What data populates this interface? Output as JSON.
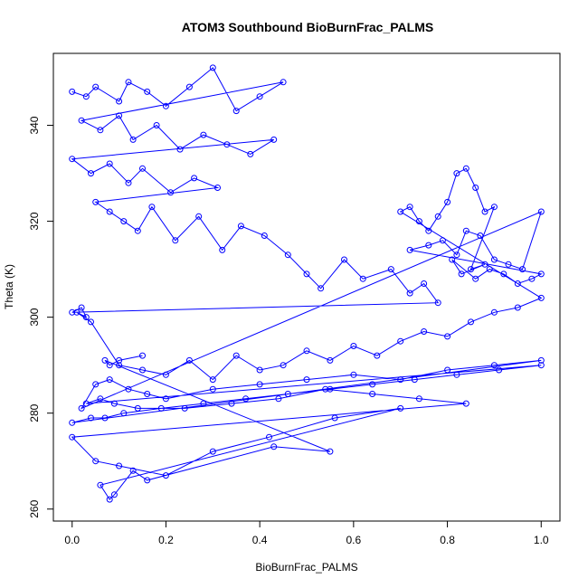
{
  "chart_data": {
    "type": "line",
    "title": "ATOM3 Southbound BioBurnFrac_PALMS",
    "xlabel": "BioBurnFrac_PALMS",
    "ylabel": "Theta (K)",
    "xlim": [
      -0.04,
      1.04
    ],
    "ylim": [
      257.5,
      355.0
    ],
    "x_ticks": [
      0.0,
      0.2,
      0.4,
      0.6,
      0.8,
      1.0
    ],
    "x_tick_labels": [
      "0.0",
      "0.2",
      "0.4",
      "0.6",
      "0.8",
      "1.0"
    ],
    "y_ticks": [
      260,
      280,
      300,
      320,
      340
    ],
    "y_tick_labels": [
      "260",
      "280",
      "300",
      "320",
      "340"
    ],
    "grid": false,
    "legend": "none",
    "color": "#0000ff",
    "marker": "open-circle",
    "series": [
      {
        "x": [
          0.0,
          0.03,
          0.05,
          0.1,
          0.12,
          0.16,
          0.2,
          0.25,
          0.3,
          0.35,
          0.4,
          0.45,
          0.02,
          0.06,
          0.1,
          0.13,
          0.18,
          0.23,
          0.28,
          0.33,
          0.38,
          0.43,
          0.0,
          0.04,
          0.08,
          0.12,
          0.15,
          0.21,
          0.26,
          0.31,
          0.05,
          0.08,
          0.11,
          0.14,
          0.17,
          0.22,
          0.27,
          0.32,
          0.36,
          0.41,
          0.46,
          0.5,
          0.53,
          0.58,
          0.62,
          0.68,
          0.72,
          0.75,
          0.78,
          0.0,
          0.02,
          0.03,
          0.01,
          0.04,
          0.1,
          0.15,
          0.2,
          0.25,
          0.3,
          0.35,
          0.4,
          0.45,
          0.5,
          0.55,
          0.6,
          0.65,
          0.7,
          0.75,
          0.8,
          0.85,
          0.9,
          0.95,
          1.0,
          0.7,
          0.72,
          0.74,
          0.76,
          0.78,
          0.8,
          0.82,
          0.84,
          0.86,
          0.88,
          0.9,
          0.85,
          0.88,
          0.83,
          0.81,
          0.86,
          0.89,
          0.92,
          0.95,
          0.98,
          1.0,
          0.72,
          0.76,
          0.79,
          0.82,
          0.84,
          0.87,
          0.9,
          0.93,
          0.96,
          1.0,
          0.02,
          0.05,
          0.08,
          0.12,
          0.16,
          0.2,
          0.3,
          0.4,
          0.5,
          0.6,
          0.7,
          0.8,
          0.9,
          1.0,
          0.0,
          0.04,
          0.07,
          0.11,
          0.19,
          0.28,
          0.37,
          0.46,
          0.55,
          0.64,
          0.73,
          0.82,
          0.91,
          1.0,
          0.03,
          0.06,
          0.09,
          0.14,
          0.24,
          0.34,
          0.44,
          0.54,
          0.64,
          0.74,
          0.84,
          0.0,
          0.05,
          0.1,
          0.2,
          0.3,
          0.42,
          0.56,
          0.7,
          0.06,
          0.08,
          0.09,
          0.13,
          0.16,
          0.43,
          0.55,
          0.07,
          0.08,
          0.1,
          0.15
        ],
        "y": [
          347,
          346,
          348,
          345,
          349,
          347,
          344,
          348,
          352,
          343,
          346,
          349,
          341,
          339,
          342,
          337,
          340,
          335,
          338,
          336,
          334,
          337,
          333,
          330,
          332,
          328,
          331,
          326,
          329,
          327,
          324,
          322,
          320,
          318,
          323,
          316,
          321,
          314,
          319,
          317,
          313,
          309,
          306,
          312,
          308,
          310,
          305,
          307,
          303,
          301,
          302,
          300,
          301,
          299,
          290,
          289,
          288,
          291,
          287,
          292,
          289,
          290,
          293,
          291,
          294,
          292,
          295,
          297,
          296,
          299,
          301,
          302,
          304,
          322,
          323,
          320,
          318,
          321,
          324,
          330,
          331,
          327,
          322,
          323,
          310,
          311,
          309,
          312,
          308,
          310,
          309,
          307,
          308,
          309,
          314,
          315,
          316,
          313,
          318,
          317,
          312,
          311,
          310,
          322,
          281,
          286,
          287,
          285,
          284,
          283,
          285,
          286,
          287,
          288,
          287,
          289,
          290,
          291,
          278,
          279,
          279,
          280,
          281,
          282,
          283,
          284,
          285,
          286,
          287,
          288,
          289,
          290,
          282,
          283,
          282,
          281,
          281,
          282,
          283,
          285,
          284,
          283,
          282,
          275,
          270,
          269,
          267,
          272,
          275,
          279,
          281,
          265,
          262,
          263,
          268,
          266,
          273,
          272,
          291,
          290,
          291,
          292
        ]
      }
    ]
  }
}
